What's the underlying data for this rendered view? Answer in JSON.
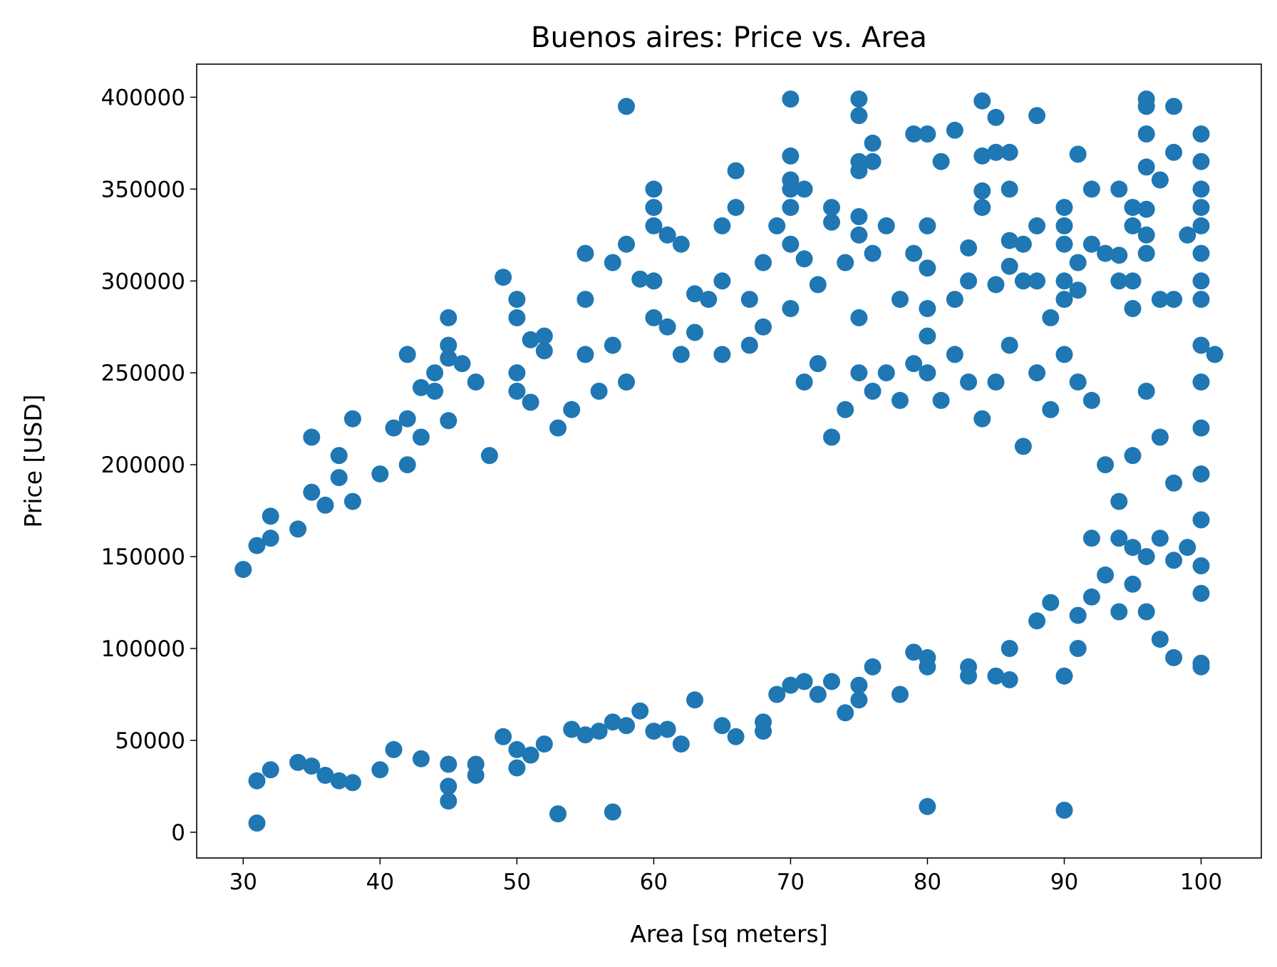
{
  "chart_data": {
    "type": "scatter",
    "title": "Buenos aires: Price vs. Area",
    "xlabel": "Area [sq meters]",
    "ylabel": "Price [USD]",
    "xlim": [
      26.6,
      104.4
    ],
    "ylim": [
      -14000,
      418000
    ],
    "xticks": [
      30,
      40,
      50,
      60,
      70,
      80,
      90,
      100
    ],
    "yticks": [
      0,
      50000,
      100000,
      150000,
      200000,
      250000,
      300000,
      350000,
      400000
    ],
    "xtick_labels": [
      "30",
      "40",
      "50",
      "60",
      "70",
      "80",
      "90",
      "100"
    ],
    "ytick_labels": [
      "0",
      "50000",
      "100000",
      "150000",
      "200000",
      "250000",
      "300000",
      "350000",
      "400000"
    ],
    "grid": false,
    "marker_color": "#1f77b4",
    "points": [
      [
        31,
        5000
      ],
      [
        53,
        10000
      ],
      [
        57,
        11000
      ],
      [
        80,
        14000
      ],
      [
        90,
        12000
      ],
      [
        31,
        28000
      ],
      [
        32,
        34000
      ],
      [
        34,
        38000
      ],
      [
        35,
        36000
      ],
      [
        36,
        31000
      ],
      [
        37,
        28000
      ],
      [
        38,
        27000
      ],
      [
        40,
        34000
      ],
      [
        41,
        45000
      ],
      [
        43,
        40000
      ],
      [
        45,
        25000
      ],
      [
        45,
        17000
      ],
      [
        45,
        37000
      ],
      [
        47,
        31000
      ],
      [
        47,
        37000
      ],
      [
        49,
        52000
      ],
      [
        50,
        35000
      ],
      [
        50,
        45000
      ],
      [
        51,
        42000
      ],
      [
        52,
        48000
      ],
      [
        54,
        56000
      ],
      [
        55,
        53000
      ],
      [
        56,
        55000
      ],
      [
        57,
        60000
      ],
      [
        58,
        58000
      ],
      [
        59,
        66000
      ],
      [
        60,
        55000
      ],
      [
        61,
        56000
      ],
      [
        62,
        48000
      ],
      [
        63,
        72000
      ],
      [
        65,
        58000
      ],
      [
        66,
        52000
      ],
      [
        68,
        55000
      ],
      [
        68,
        60000
      ],
      [
        74,
        65000
      ],
      [
        75,
        72000
      ],
      [
        30,
        143000
      ],
      [
        31,
        156000
      ],
      [
        32,
        172000
      ],
      [
        32,
        160000
      ],
      [
        34,
        165000
      ],
      [
        35,
        215000
      ],
      [
        35,
        185000
      ],
      [
        36,
        178000
      ],
      [
        37,
        205000
      ],
      [
        37,
        193000
      ],
      [
        38,
        225000
      ],
      [
        38,
        180000
      ],
      [
        40,
        195000
      ],
      [
        41,
        220000
      ],
      [
        42,
        200000
      ],
      [
        42,
        225000
      ],
      [
        42,
        260000
      ],
      [
        43,
        242000
      ],
      [
        43,
        215000
      ],
      [
        44,
        250000
      ],
      [
        44,
        240000
      ],
      [
        45,
        280000
      ],
      [
        45,
        265000
      ],
      [
        45,
        258000
      ],
      [
        45,
        224000
      ],
      [
        46,
        255000
      ],
      [
        47,
        245000
      ],
      [
        48,
        205000
      ],
      [
        49,
        302000
      ],
      [
        50,
        290000
      ],
      [
        50,
        280000
      ],
      [
        50,
        250000
      ],
      [
        50,
        240000
      ],
      [
        51,
        234000
      ],
      [
        51,
        268000
      ],
      [
        52,
        270000
      ],
      [
        52,
        262000
      ],
      [
        53,
        220000
      ],
      [
        54,
        230000
      ],
      [
        55,
        315000
      ],
      [
        55,
        290000
      ],
      [
        55,
        260000
      ],
      [
        56,
        240000
      ],
      [
        57,
        310000
      ],
      [
        57,
        265000
      ],
      [
        58,
        395000
      ],
      [
        58,
        320000
      ],
      [
        58,
        245000
      ],
      [
        59,
        301000
      ],
      [
        60,
        350000
      ],
      [
        60,
        340000
      ],
      [
        60,
        330000
      ],
      [
        60,
        300000
      ],
      [
        60,
        280000
      ],
      [
        61,
        275000
      ],
      [
        61,
        325000
      ],
      [
        62,
        320000
      ],
      [
        62,
        260000
      ],
      [
        63,
        293000
      ],
      [
        63,
        272000
      ],
      [
        64,
        290000
      ],
      [
        65,
        330000
      ],
      [
        65,
        300000
      ],
      [
        65,
        260000
      ],
      [
        66,
        360000
      ],
      [
        66,
        340000
      ],
      [
        67,
        290000
      ],
      [
        67,
        265000
      ],
      [
        68,
        310000
      ],
      [
        68,
        275000
      ],
      [
        69,
        330000
      ],
      [
        70,
        399000
      ],
      [
        70,
        368000
      ],
      [
        70,
        355000
      ],
      [
        70,
        350000
      ],
      [
        70,
        340000
      ],
      [
        70,
        320000
      ],
      [
        70,
        285000
      ],
      [
        71,
        350000
      ],
      [
        71,
        312000
      ],
      [
        72,
        298000
      ],
      [
        73,
        340000
      ],
      [
        73,
        332000
      ],
      [
        74,
        310000
      ],
      [
        75,
        399000
      ],
      [
        75,
        390000
      ],
      [
        75,
        365000
      ],
      [
        75,
        360000
      ],
      [
        75,
        335000
      ],
      [
        75,
        325000
      ],
      [
        75,
        280000
      ],
      [
        76,
        375000
      ],
      [
        76,
        365000
      ],
      [
        76,
        315000
      ],
      [
        77,
        330000
      ],
      [
        78,
        290000
      ],
      [
        79,
        380000
      ],
      [
        79,
        315000
      ],
      [
        80,
        380000
      ],
      [
        80,
        330000
      ],
      [
        80,
        307000
      ],
      [
        80,
        285000
      ],
      [
        81,
        365000
      ],
      [
        82,
        382000
      ],
      [
        82,
        290000
      ],
      [
        83,
        318000
      ],
      [
        83,
        300000
      ],
      [
        84,
        398000
      ],
      [
        84,
        368000
      ],
      [
        84,
        349000
      ],
      [
        84,
        340000
      ],
      [
        85,
        389000
      ],
      [
        85,
        370000
      ],
      [
        85,
        298000
      ],
      [
        86,
        370000
      ],
      [
        86,
        350000
      ],
      [
        86,
        322000
      ],
      [
        86,
        308000
      ],
      [
        87,
        320000
      ],
      [
        87,
        300000
      ],
      [
        88,
        390000
      ],
      [
        88,
        330000
      ],
      [
        88,
        300000
      ],
      [
        89,
        280000
      ],
      [
        90,
        340000
      ],
      [
        90,
        330000
      ],
      [
        90,
        320000
      ],
      [
        90,
        300000
      ],
      [
        90,
        290000
      ],
      [
        91,
        369000
      ],
      [
        91,
        310000
      ],
      [
        91,
        295000
      ],
      [
        92,
        350000
      ],
      [
        92,
        320000
      ],
      [
        93,
        315000
      ],
      [
        94,
        350000
      ],
      [
        94,
        314000
      ],
      [
        94,
        300000
      ],
      [
        95,
        340000
      ],
      [
        95,
        330000
      ],
      [
        95,
        300000
      ],
      [
        95,
        285000
      ],
      [
        96,
        399000
      ],
      [
        96,
        395000
      ],
      [
        96,
        380000
      ],
      [
        96,
        362000
      ],
      [
        96,
        339000
      ],
      [
        96,
        325000
      ],
      [
        96,
        315000
      ],
      [
        97,
        355000
      ],
      [
        97,
        290000
      ],
      [
        98,
        395000
      ],
      [
        98,
        370000
      ],
      [
        98,
        290000
      ],
      [
        99,
        325000
      ],
      [
        100,
        380000
      ],
      [
        100,
        365000
      ],
      [
        100,
        350000
      ],
      [
        100,
        340000
      ],
      [
        100,
        330000
      ],
      [
        100,
        315000
      ],
      [
        100,
        300000
      ],
      [
        100,
        290000
      ],
      [
        101,
        260000
      ],
      [
        69,
        75000
      ],
      [
        70,
        80000
      ],
      [
        71,
        82000
      ],
      [
        72,
        75000
      ],
      [
        73,
        82000
      ],
      [
        75,
        80000
      ],
      [
        76,
        90000
      ],
      [
        78,
        75000
      ],
      [
        79,
        98000
      ],
      [
        80,
        95000
      ],
      [
        80,
        90000
      ],
      [
        83,
        90000
      ],
      [
        83,
        85000
      ],
      [
        85,
        85000
      ],
      [
        86,
        83000
      ],
      [
        86,
        100000
      ],
      [
        88,
        115000
      ],
      [
        89,
        125000
      ],
      [
        90,
        85000
      ],
      [
        91,
        100000
      ],
      [
        91,
        118000
      ],
      [
        92,
        128000
      ],
      [
        93,
        140000
      ],
      [
        94,
        120000
      ],
      [
        95,
        135000
      ],
      [
        96,
        120000
      ],
      [
        97,
        105000
      ],
      [
        98,
        95000
      ],
      [
        100,
        92000
      ],
      [
        100,
        90000
      ],
      [
        100,
        130000
      ],
      [
        92,
        160000
      ],
      [
        94,
        160000
      ],
      [
        95,
        155000
      ],
      [
        96,
        150000
      ],
      [
        97,
        160000
      ],
      [
        98,
        148000
      ],
      [
        99,
        155000
      ],
      [
        100,
        145000
      ],
      [
        100,
        170000
      ],
      [
        100,
        195000
      ],
      [
        100,
        220000
      ],
      [
        100,
        245000
      ],
      [
        100,
        265000
      ],
      [
        98,
        190000
      ],
      [
        97,
        215000
      ],
      [
        96,
        240000
      ],
      [
        95,
        205000
      ],
      [
        94,
        180000
      ],
      [
        93,
        200000
      ],
      [
        92,
        235000
      ],
      [
        91,
        245000
      ],
      [
        90,
        260000
      ],
      [
        89,
        230000
      ],
      [
        88,
        250000
      ],
      [
        87,
        210000
      ],
      [
        86,
        265000
      ],
      [
        85,
        245000
      ],
      [
        84,
        225000
      ],
      [
        83,
        245000
      ],
      [
        82,
        260000
      ],
      [
        81,
        235000
      ],
      [
        80,
        270000
      ],
      [
        80,
        250000
      ],
      [
        79,
        255000
      ],
      [
        78,
        235000
      ],
      [
        77,
        250000
      ],
      [
        76,
        240000
      ],
      [
        75,
        250000
      ],
      [
        74,
        230000
      ],
      [
        73,
        215000
      ],
      [
        72,
        255000
      ],
      [
        71,
        245000
      ]
    ]
  }
}
